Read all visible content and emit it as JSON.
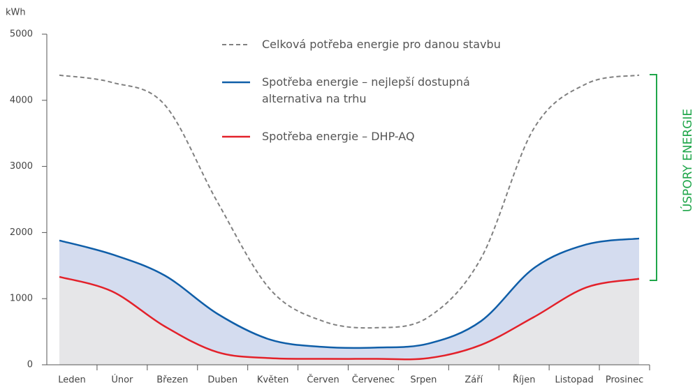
{
  "chart_data": {
    "type": "line",
    "y_label": "kWh",
    "categories": [
      "Leden",
      "Únor",
      "Březen",
      "Duben",
      "Květen",
      "Červen",
      "Červenec",
      "Srpen",
      "Září",
      "Říjen",
      "Listopad",
      "Prosinec"
    ],
    "series": [
      {
        "name": "Celková potřeba energie pro danou stavbu",
        "color": "#808080",
        "dash": true,
        "values": [
          4380,
          4270,
          3930,
          2460,
          1140,
          660,
          560,
          720,
          1610,
          3570,
          4250,
          4380
        ]
      },
      {
        "name": "Spotřeba energie – nejlepší dostupná alternativa na trhu",
        "color": "#0f5ea8",
        "area_color": "#d4dcef",
        "values": [
          1880,
          1670,
          1350,
          770,
          380,
          270,
          260,
          320,
          660,
          1460,
          1820,
          1910
        ]
      },
      {
        "name": "Spotřeba energie – DHP-AQ",
        "color": "#e3212a",
        "area_color": "#e6e6e8",
        "values": [
          1330,
          1110,
          580,
          190,
          100,
          90,
          90,
          100,
          300,
          720,
          1170,
          1300
        ]
      }
    ],
    "annotation": {
      "text": "ÚSPORY ENERGIE",
      "color": "#1fa64a"
    },
    "ylim": [
      0,
      5000
    ],
    "yticks": [
      0,
      1000,
      2000,
      3000,
      4000,
      5000
    ]
  }
}
